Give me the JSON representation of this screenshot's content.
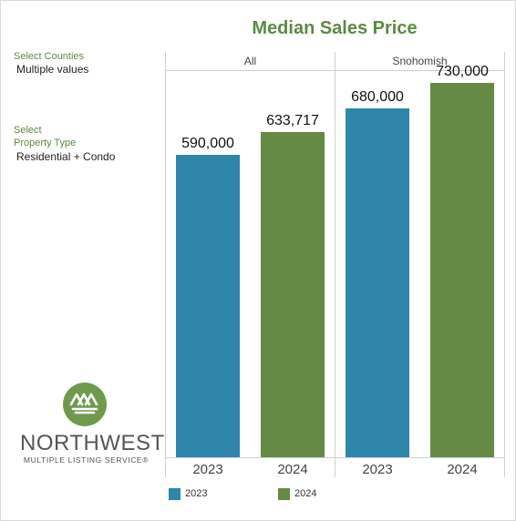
{
  "colors": {
    "accent": "#5c8a43",
    "series_2023": "#2e86ab",
    "series_2024": "#658a45"
  },
  "filters": {
    "counties_label": "Select Counties",
    "counties_value": "Multiple values",
    "property_label_line1": "Select",
    "property_label_line2": "Property Type",
    "property_value": "Residential + Condo"
  },
  "logo": {
    "name": "NORTHWEST",
    "tagline": "MULTIPLE LISTING SERVICE®",
    "icon": "house-roofs-icon"
  },
  "chart_data": {
    "type": "bar",
    "title": "Median Sales Price",
    "panels": [
      "All",
      "Snohomish"
    ],
    "categories": [
      "2023",
      "2024"
    ],
    "series": [
      {
        "name": "2023",
        "values": [
          590000,
          680000
        ],
        "labels": [
          "590,000",
          "680,000"
        ]
      },
      {
        "name": "2024",
        "values": [
          633717,
          730000
        ],
        "labels": [
          "633,717",
          "730,000"
        ]
      }
    ],
    "ylim": [
      0,
      750000
    ],
    "grid": false,
    "legend_position": "bottom"
  }
}
